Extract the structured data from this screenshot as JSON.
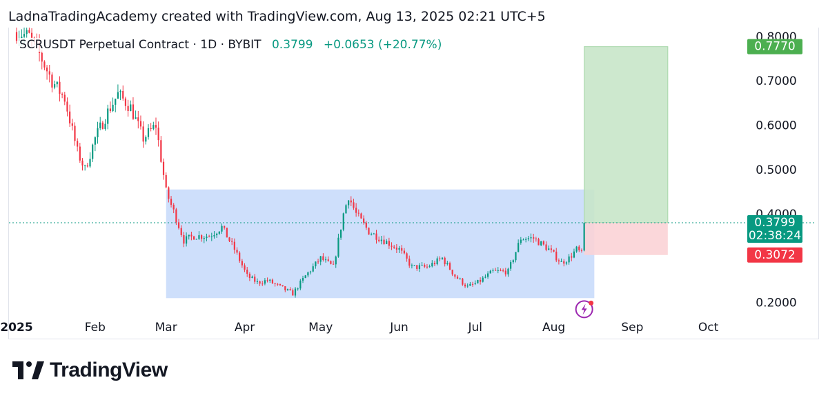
{
  "header": {
    "credit": "LadnaTradingAcademy created with TradingView.com, Aug 13, 2025 02:21 UTC+5"
  },
  "legend": {
    "symbol": "SCRUSDT Perpetual Contract · 1D · BYBIT",
    "price": "0.3799",
    "change": "+0.0653 (+20.77%)"
  },
  "colors": {
    "up": "#089981",
    "down": "#f23645",
    "range_box": "#c9dcfb",
    "target_zone": "#c8e6c9",
    "stop_zone": "#fbd3d6",
    "target_tag": "#4caf50",
    "stop_tag": "#f23645",
    "price_tag": "#089981"
  },
  "chart_data": {
    "type": "candlestick",
    "title": "SCRUSDT Perpetual Contract · 1D · BYBIT",
    "x_axis": {
      "start": "2024-12-29",
      "end": "2025-10-15",
      "tick_labels": [
        {
          "label": "2025",
          "date": "2025-01-01",
          "bold": true
        },
        {
          "label": "Feb",
          "date": "2025-02-01"
        },
        {
          "label": "Mar",
          "date": "2025-03-01"
        },
        {
          "label": "Apr",
          "date": "2025-04-01"
        },
        {
          "label": "May",
          "date": "2025-05-01"
        },
        {
          "label": "Jun",
          "date": "2025-06-01"
        },
        {
          "label": "Jul",
          "date": "2025-07-01"
        },
        {
          "label": "Aug",
          "date": "2025-08-01"
        },
        {
          "label": "Sep",
          "date": "2025-09-01"
        },
        {
          "label": "Oct",
          "date": "2025-10-01"
        }
      ]
    },
    "y_axis": {
      "ylim": [
        0.17,
        0.82
      ],
      "tick_labels": [
        "0.8000",
        "0.7000",
        "0.6000",
        "0.5000",
        "0.4000",
        "0.2000"
      ],
      "tick_values": [
        0.8,
        0.7,
        0.6,
        0.5,
        0.4,
        0.2
      ]
    },
    "price_path": [
      [
        "2025-01-01",
        0.81
      ],
      [
        "2025-01-06",
        0.8
      ],
      [
        "2025-01-10",
        0.76
      ],
      [
        "2025-01-15",
        0.7
      ],
      [
        "2025-01-20",
        0.66
      ],
      [
        "2025-01-25",
        0.54
      ],
      [
        "2025-01-28",
        0.5
      ],
      [
        "2025-02-01",
        0.57
      ],
      [
        "2025-02-06",
        0.63
      ],
      [
        "2025-02-10",
        0.67
      ],
      [
        "2025-02-15",
        0.64
      ],
      [
        "2025-02-20",
        0.57
      ],
      [
        "2025-02-25",
        0.6
      ],
      [
        "2025-03-01",
        0.45
      ],
      [
        "2025-03-05",
        0.39
      ],
      [
        "2025-03-08",
        0.34
      ],
      [
        "2025-03-12",
        0.35
      ],
      [
        "2025-03-18",
        0.35
      ],
      [
        "2025-03-23",
        0.37
      ],
      [
        "2025-03-28",
        0.32
      ],
      [
        "2025-04-02",
        0.26
      ],
      [
        "2025-04-06",
        0.245
      ],
      [
        "2025-04-10",
        0.25
      ],
      [
        "2025-04-15",
        0.235
      ],
      [
        "2025-04-20",
        0.22
      ],
      [
        "2025-04-25",
        0.26
      ],
      [
        "2025-05-01",
        0.3
      ],
      [
        "2025-05-06",
        0.28
      ],
      [
        "2025-05-10",
        0.4
      ],
      [
        "2025-05-12",
        0.44
      ],
      [
        "2025-05-15",
        0.4
      ],
      [
        "2025-05-20",
        0.36
      ],
      [
        "2025-05-26",
        0.34
      ],
      [
        "2025-06-01",
        0.32
      ],
      [
        "2025-06-06",
        0.28
      ],
      [
        "2025-06-12",
        0.28
      ],
      [
        "2025-06-18",
        0.3
      ],
      [
        "2025-06-23",
        0.26
      ],
      [
        "2025-06-28",
        0.235
      ],
      [
        "2025-07-02",
        0.245
      ],
      [
        "2025-07-08",
        0.27
      ],
      [
        "2025-07-14",
        0.27
      ],
      [
        "2025-07-19",
        0.345
      ],
      [
        "2025-07-24",
        0.345
      ],
      [
        "2025-07-30",
        0.32
      ],
      [
        "2025-08-04",
        0.29
      ],
      [
        "2025-08-07",
        0.3
      ],
      [
        "2025-08-10",
        0.32
      ],
      [
        "2025-08-12",
        0.31
      ],
      [
        "2025-08-13",
        0.3799
      ]
    ],
    "annotations": {
      "range_box": {
        "x_start": "2025-03-01",
        "x_end": "2025-08-17",
        "y_low": 0.21,
        "y_high": 0.455
      },
      "target_zone": {
        "x_start": "2025-08-13",
        "x_end": "2025-09-15",
        "y_low": 0.3799,
        "y_high": 0.777
      },
      "stop_zone": {
        "x_start": "2025-08-13",
        "x_end": "2025-09-15",
        "y_low": 0.3072,
        "y_high": 0.3799
      },
      "current_price_line": 0.3799
    },
    "price_labels": {
      "target": "0.7770",
      "current": "0.3799",
      "countdown": "02:38:24",
      "stop": "0.3072"
    },
    "target_value": 0.777,
    "stop_value": 0.3072,
    "current_value": 0.3799
  },
  "footer": {
    "brand": "TradingView"
  }
}
